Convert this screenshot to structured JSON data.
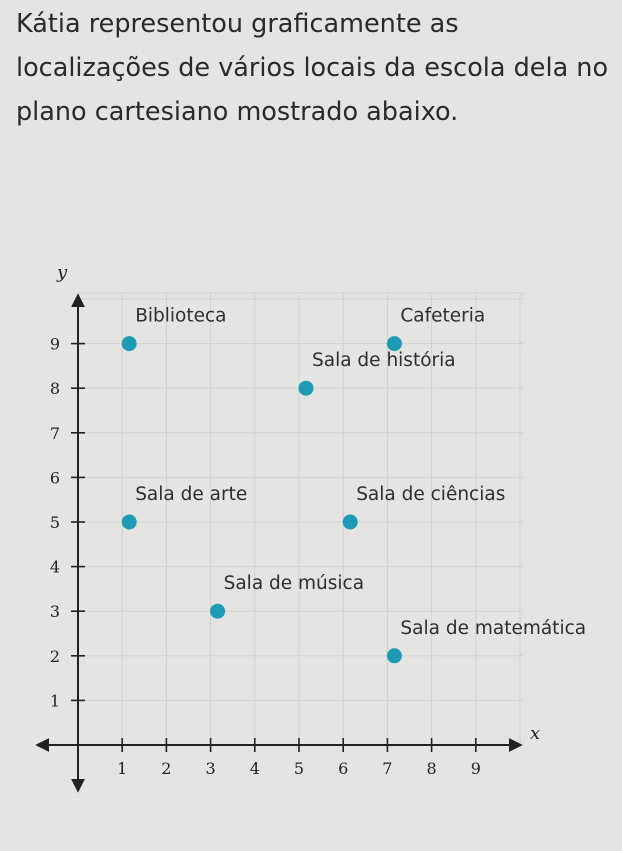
{
  "question": "Kátia representou graficamente as localizações de vários locais da escola dela no plano cartesiano mostrado abaixo.",
  "chart_data": {
    "type": "scatter",
    "xlabel": "x",
    "ylabel": "y",
    "xlim": [
      0,
      10
    ],
    "ylim": [
      0,
      10
    ],
    "x_ticks": [
      1,
      2,
      3,
      4,
      5,
      6,
      7,
      8,
      9
    ],
    "y_ticks": [
      1,
      2,
      3,
      4,
      5,
      6,
      7,
      8,
      9
    ],
    "grid": true,
    "point_color": "#1e9bb4",
    "points": [
      {
        "label": "Biblioteca",
        "x": 1,
        "y": 9
      },
      {
        "label": "Cafeteria",
        "x": 7,
        "y": 9
      },
      {
        "label": "Sala de história",
        "x": 5,
        "y": 8
      },
      {
        "label": "Sala de arte",
        "x": 1,
        "y": 5
      },
      {
        "label": "Sala de ciências",
        "x": 6,
        "y": 5
      },
      {
        "label": "Sala de música",
        "x": 3,
        "y": 3
      },
      {
        "label": "Sala de matemática",
        "x": 7,
        "y": 2
      }
    ]
  }
}
